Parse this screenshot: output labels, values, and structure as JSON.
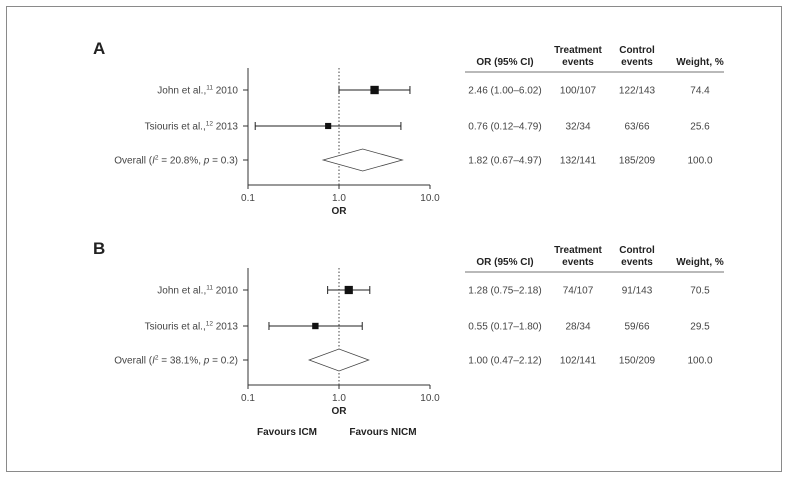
{
  "chart_data": [
    {
      "type": "forest",
      "panel": "A",
      "x_scale": "log",
      "xlim": [
        0.1,
        10.0
      ],
      "ticks": [
        "0.1",
        "1.0",
        "10.0"
      ],
      "tick_values": [
        0.1,
        1.0,
        10.0
      ],
      "xlabel": "OR",
      "columns": [
        "OR (95% CI)",
        "Treatment events",
        "Control events",
        "Weight, %"
      ],
      "rows": [
        {
          "label_main": "John et al.,",
          "label_sup": "11",
          "label_tail": " 2010",
          "or": 2.46,
          "lo": 1.0,
          "hi": 6.02,
          "weight": 74.4,
          "or_ci": "2.46 (1.00–6.02)",
          "treatment": "100/107",
          "control": "122/143",
          "weight_text": "74.4"
        },
        {
          "label_main": "Tsiouris et al.,",
          "label_sup": "12",
          "label_tail": " 2013",
          "or": 0.76,
          "lo": 0.12,
          "hi": 4.79,
          "weight": 25.6,
          "or_ci": "0.76 (0.12–4.79)",
          "treatment": "32/34",
          "control": "63/66",
          "weight_text": "25.6"
        }
      ],
      "overall": {
        "label_pre": "Overall (",
        "label_i": "I",
        "label_sup": "2",
        "label_mid": " = 20.8%, ",
        "label_p": "p",
        "label_end": " = 0.3)",
        "or": 1.82,
        "lo": 0.67,
        "hi": 4.97,
        "or_ci": "1.82 (0.67–4.97)",
        "treatment": "132/141",
        "control": "185/209",
        "weight_text": "100.0"
      }
    },
    {
      "type": "forest",
      "panel": "B",
      "x_scale": "log",
      "xlim": [
        0.1,
        10.0
      ],
      "ticks": [
        "0.1",
        "1.0",
        "10.0"
      ],
      "tick_values": [
        0.1,
        1.0,
        10.0
      ],
      "xlabel": "OR",
      "columns": [
        "OR (95% CI)",
        "Treatment events",
        "Control events",
        "Weight, %"
      ],
      "rows": [
        {
          "label_main": "John et al.,",
          "label_sup": "11",
          "label_tail": " 2010",
          "or": 1.28,
          "lo": 0.75,
          "hi": 2.18,
          "weight": 70.5,
          "or_ci": "1.28 (0.75–2.18)",
          "treatment": "74/107",
          "control": "91/143",
          "weight_text": "70.5"
        },
        {
          "label_main": "Tsiouris et al.,",
          "label_sup": "12",
          "label_tail": " 2013",
          "or": 0.55,
          "lo": 0.17,
          "hi": 1.8,
          "weight": 29.5,
          "or_ci": "0.55 (0.17–1.80)",
          "treatment": "28/34",
          "control": "59/66",
          "weight_text": "29.5"
        }
      ],
      "overall": {
        "label_pre": "Overall (",
        "label_i": "I",
        "label_sup": "2",
        "label_mid": " = 38.1%, ",
        "label_p": "p",
        "label_end": " = 0.2)",
        "or": 1.0,
        "lo": 0.47,
        "hi": 2.12,
        "or_ci": "1.00 (0.47–2.12)",
        "treatment": "102/141",
        "control": "150/209",
        "weight_text": "100.0"
      },
      "favours_left": "Favours ICM",
      "favours_right": "Favours NICM"
    }
  ]
}
